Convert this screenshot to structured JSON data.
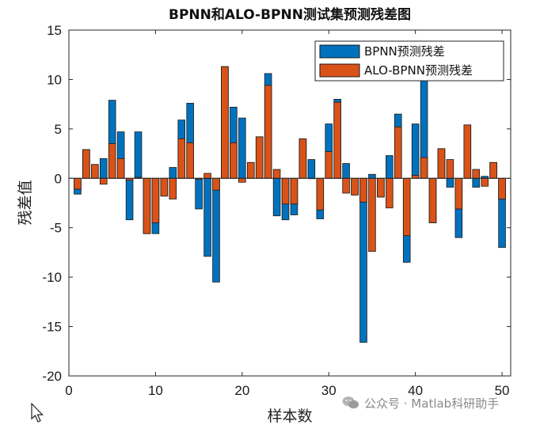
{
  "chart_data": {
    "type": "bar",
    "title": "BPNN和ALO-BPNN测试集预测残差图",
    "xlabel": "样本数",
    "ylabel": "残差值",
    "xlim": [
      0,
      51
    ],
    "ylim": [
      -20,
      15
    ],
    "x_ticks": [
      0,
      10,
      20,
      30,
      40,
      50
    ],
    "y_ticks": [
      -20,
      -15,
      -10,
      -5,
      0,
      5,
      10,
      15
    ],
    "legend_position": "top-right",
    "x": [
      1,
      2,
      3,
      4,
      5,
      6,
      7,
      8,
      9,
      10,
      11,
      12,
      13,
      14,
      15,
      16,
      17,
      18,
      19,
      20,
      21,
      22,
      23,
      24,
      25,
      26,
      27,
      28,
      29,
      30,
      31,
      32,
      33,
      34,
      35,
      36,
      37,
      38,
      39,
      40,
      41,
      42,
      43,
      44,
      45,
      46,
      47,
      48,
      49,
      50
    ],
    "series": [
      {
        "name": "BPNN预测残差",
        "color": "#0072BD",
        "values": [
          -1.6,
          2.9,
          1.4,
          2.0,
          7.9,
          4.7,
          -4.2,
          4.7,
          -5.6,
          -5.6,
          -1.8,
          1.1,
          5.9,
          7.6,
          -3.1,
          -7.9,
          -10.5,
          11.3,
          7.2,
          6.1,
          1.6,
          4.2,
          10.6,
          -3.8,
          -4.2,
          -3.7,
          4.0,
          1.9,
          -4.1,
          5.5,
          8.0,
          1.5,
          -1.6,
          -16.6,
          0.4,
          -1.9,
          2.3,
          6.5,
          -8.5,
          5.5,
          11.0,
          -4.5,
          3.0,
          -0.9,
          -6.0,
          5.4,
          -0.9,
          0.2,
          1.6,
          -7.0
        ]
      },
      {
        "name": "ALO-BPNN预测残差",
        "color": "#D95319",
        "values": [
          -1.1,
          2.9,
          1.4,
          -0.6,
          3.5,
          2.0,
          -0.2,
          0.1,
          -5.6,
          -4.5,
          -1.8,
          -2.1,
          4.0,
          3.6,
          -0.1,
          0.5,
          -1.2,
          11.3,
          3.6,
          -0.4,
          1.6,
          4.2,
          9.4,
          0.9,
          -2.6,
          -2.6,
          4.0,
          0.0,
          -3.2,
          2.7,
          7.7,
          -1.5,
          -1.7,
          -2.4,
          -7.4,
          -1.9,
          -3.0,
          5.2,
          -5.8,
          0.3,
          2.1,
          -4.5,
          3.0,
          1.9,
          -3.1,
          5.4,
          0.9,
          -0.8,
          1.6,
          -2.1
        ]
      }
    ]
  },
  "watermark": {
    "text": "公众号 · Matlab科研助手"
  }
}
